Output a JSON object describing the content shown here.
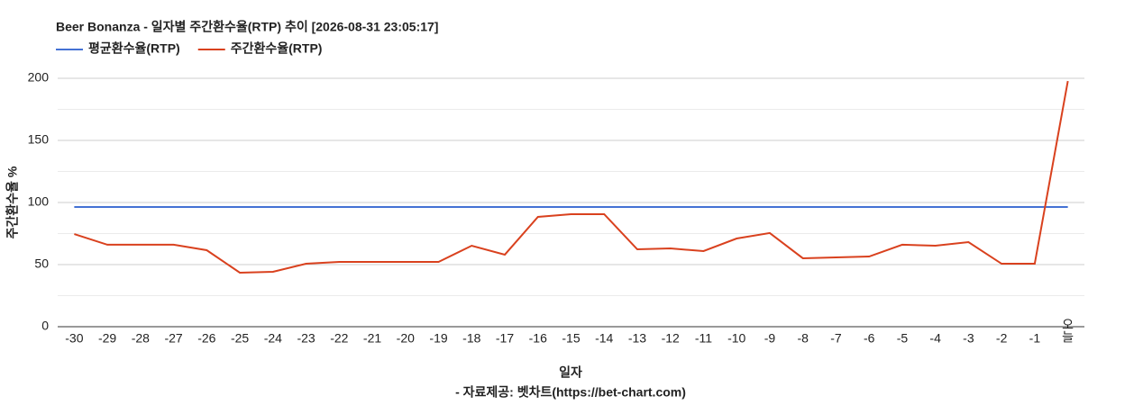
{
  "chart_data": {
    "type": "line",
    "title": "Beer Bonanza - 일자별 주간환수율(RTP) 추이 [2026-08-31 23:05:17]",
    "x_label": "일자",
    "y_label": "주간환수율 %",
    "source": "- 자료제공: 벳차트(https://bet-chart.com)",
    "categories": [
      "-30",
      "-29",
      "-28",
      "-27",
      "-26",
      "-25",
      "-24",
      "-23",
      "-22",
      "-21",
      "-20",
      "-19",
      "-18",
      "-17",
      "-16",
      "-15",
      "-14",
      "-13",
      "-12",
      "-11",
      "-10",
      "-9",
      "-8",
      "-7",
      "-6",
      "-5",
      "-4",
      "-3",
      "-2",
      "-1",
      "오늘"
    ],
    "series": [
      {
        "name": "평균환수율(RTP)",
        "color": "#4472d4",
        "values": [
          96.4,
          96.4,
          96.4,
          96.4,
          96.4,
          96.4,
          96.4,
          96.4,
          96.4,
          96.4,
          96.4,
          96.4,
          96.4,
          96.4,
          96.4,
          96.4,
          96.4,
          96.4,
          96.4,
          96.4,
          96.4,
          96.4,
          96.4,
          96.4,
          96.4,
          96.4,
          96.4,
          96.4,
          96.4,
          96.4,
          96.4
        ]
      },
      {
        "name": "주간환수율(RTP)",
        "color": "#d9411e",
        "values": [
          74.6,
          66,
          66,
          66,
          61.6,
          43.5,
          44.2,
          50.7,
          52.2,
          52.2,
          52.2,
          52.2,
          65.2,
          58,
          88.4,
          90.6,
          90.6,
          62.3,
          63,
          60.9,
          71,
          75.4,
          55.1,
          55.8,
          56.5,
          66,
          65.2,
          68.1,
          50.7,
          50.7,
          197.8
        ]
      }
    ],
    "ylim": [
      0,
      200
    ],
    "yticks": [
      0,
      50,
      100,
      150,
      200
    ],
    "minor_yticks": [
      25,
      75,
      125,
      175
    ],
    "grid": true
  }
}
